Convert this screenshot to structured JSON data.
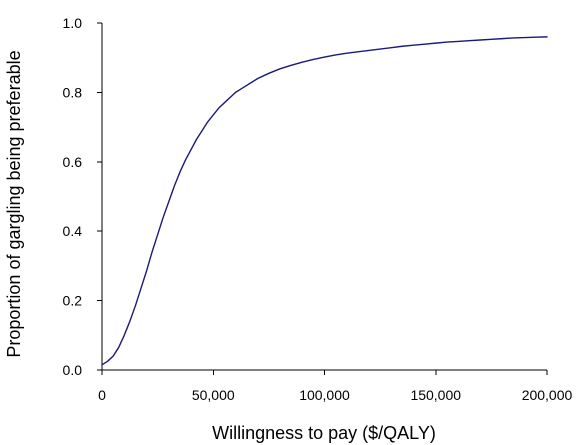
{
  "chart_data": {
    "type": "line",
    "title": "",
    "xlabel": "Willingness to pay ($/QALY)",
    "ylabel": "Proportion of gargling being preferable",
    "xlim": [
      0,
      200000
    ],
    "ylim": [
      0.0,
      1.0
    ],
    "x_ticks": [
      0,
      50000,
      100000,
      150000,
      200000
    ],
    "x_tick_labels": [
      "0",
      "50,000",
      "100,000",
      "150,000",
      "200,000"
    ],
    "y_ticks": [
      0.0,
      0.2,
      0.4,
      0.6,
      0.8,
      1.0
    ],
    "y_tick_labels": [
      "0.0",
      "0.2",
      "0.4",
      "0.6",
      "0.8",
      "1.0"
    ],
    "grid": false,
    "legend": "none",
    "series": [
      {
        "color": "#1a1a7a",
        "x": [
          0,
          2500,
          5000,
          7500,
          10000,
          12500,
          15000,
          17500,
          20000,
          22500,
          25000,
          27500,
          30000,
          32500,
          35000,
          37500,
          40000,
          42500,
          45000,
          47500,
          50000,
          52500,
          55000,
          57500,
          60000,
          62500,
          65000,
          67500,
          70000,
          75000,
          80000,
          85000,
          90000,
          95000,
          100000,
          105000,
          110000,
          115000,
          120000,
          125000,
          130000,
          135000,
          140000,
          145000,
          150000,
          155000,
          160000,
          165000,
          170000,
          175000,
          180000,
          185000,
          190000,
          195000,
          200000
        ],
        "y": [
          0.015,
          0.025,
          0.04,
          0.065,
          0.1,
          0.14,
          0.185,
          0.235,
          0.285,
          0.34,
          0.39,
          0.44,
          0.485,
          0.53,
          0.57,
          0.605,
          0.635,
          0.665,
          0.69,
          0.715,
          0.735,
          0.755,
          0.77,
          0.785,
          0.8,
          0.81,
          0.82,
          0.83,
          0.84,
          0.855,
          0.868,
          0.878,
          0.887,
          0.895,
          0.902,
          0.908,
          0.913,
          0.917,
          0.921,
          0.925,
          0.929,
          0.933,
          0.936,
          0.939,
          0.942,
          0.945,
          0.947,
          0.949,
          0.951,
          0.953,
          0.955,
          0.957,
          0.958,
          0.959,
          0.96
        ]
      }
    ]
  }
}
